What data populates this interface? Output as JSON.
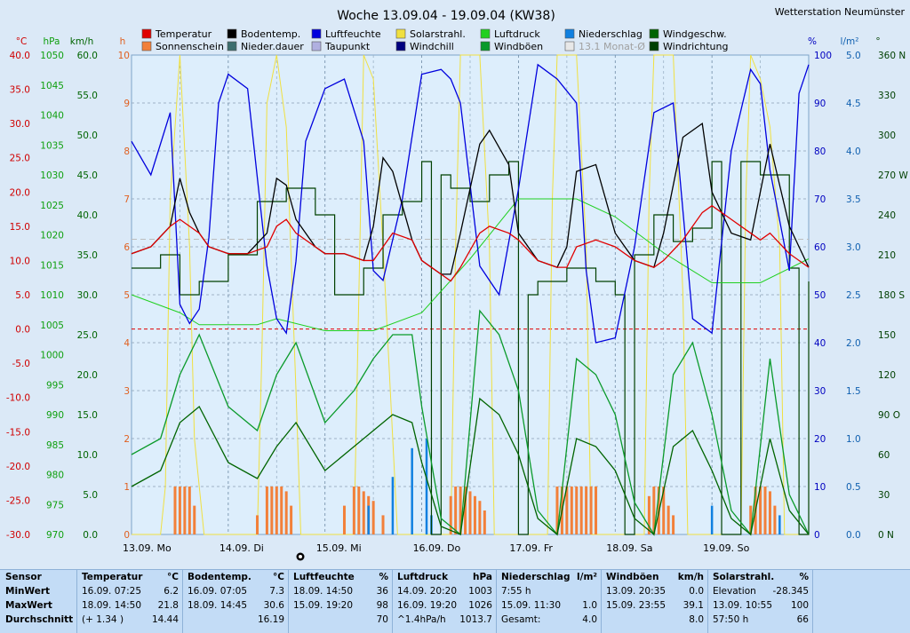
{
  "title": "Woche 13.09.04 - 19.09.04 (KW38)",
  "station": "Wetterstation Neumünster",
  "colors": {
    "background": "#dbe9f7",
    "temperature": "#e00000",
    "sunshine": "#f2803a",
    "soil_temp": "#000000",
    "precip_duration": "#3c6e6e",
    "humidity": "#0000dd",
    "dew_point": "#9090cc",
    "solar": "#f0e040",
    "windchill": "#000080",
    "pressure": "#20d020",
    "gusts": "#0a9a2a",
    "precipitation": "#1080e0",
    "month_avg": "#c8c8c8",
    "wind_speed": "#006400",
    "wind_dir": "#004000"
  },
  "axes": {
    "temp": {
      "unit": "°C",
      "ticks": [
        "40.0",
        "35.0",
        "30.0",
        "25.0",
        "20.0",
        "15.0",
        "10.0",
        "5.0",
        "0.0",
        "-5.0",
        "-10.0",
        "-15.0",
        "-20.0",
        "-25.0",
        "-30.0"
      ]
    },
    "pressure": {
      "unit": "hPa",
      "ticks": [
        "1050",
        "1045",
        "1040",
        "1035",
        "1030",
        "1025",
        "1020",
        "1015",
        "1010",
        "1005",
        "1000",
        "995",
        "990",
        "985",
        "980",
        "975",
        "970"
      ]
    },
    "wind": {
      "unit": "km/h",
      "ticks": [
        "60.0",
        "55.0",
        "50.0",
        "45.0",
        "40.0",
        "35.0",
        "30.0",
        "25.0",
        "20.0",
        "15.0",
        "10.0",
        "5.0",
        "0.0"
      ]
    },
    "hours": {
      "unit": "h",
      "ticks": [
        "10",
        "9",
        "8",
        "7",
        "6",
        "5",
        "4",
        "3",
        "2",
        "1",
        "0"
      ]
    },
    "percent": {
      "unit": "%",
      "ticks": [
        "100",
        "90",
        "80",
        "70",
        "60",
        "50",
        "40",
        "30",
        "20",
        "10",
        "0"
      ]
    },
    "precip": {
      "unit": "l/m²",
      "ticks": [
        "5.0",
        "4.5",
        "4.0",
        "3.5",
        "3.0",
        "2.5",
        "2.0",
        "1.5",
        "1.0",
        "0.5",
        "0.0"
      ]
    },
    "direction": {
      "unit": "°",
      "ticks": [
        "360 N",
        "330",
        "300",
        "270 W",
        "240",
        "210",
        "180 S",
        "150",
        "120",
        "90 O",
        "60",
        "30",
        "0 N"
      ]
    }
  },
  "day_labels": [
    "13.09.  Mo",
    "14.09.  Di",
    "15.09.  Mi",
    "16.09.  Do",
    "17.09.  Fr",
    "18.09.  Sa",
    "19.09.  So"
  ],
  "legend": [
    {
      "label": "Temperatur",
      "color": "#e00000"
    },
    {
      "label": "Sonnenschein",
      "color": "#f2803a"
    },
    {
      "label": "Bodentemp.",
      "color": "#000000"
    },
    {
      "label": "Nieder.dauer",
      "color": "#3c6e6e"
    },
    {
      "label": "Luftfeuchte",
      "color": "#0000dd"
    },
    {
      "label": "Taupunkt",
      "color": "#b0b0e0"
    },
    {
      "label": "Solarstrahl.",
      "color": "#f0e040"
    },
    {
      "label": "Windchill",
      "color": "#000080"
    },
    {
      "label": "Luftdruck",
      "color": "#20d020"
    },
    {
      "label": "Windböen",
      "color": "#0a9a2a"
    },
    {
      "label": "Niederschlag",
      "color": "#1080e0"
    },
    {
      "label": "13.1 Monat-Ø",
      "color": "#e8e8e8"
    },
    {
      "label": "Windgeschw.",
      "color": "#006400"
    },
    {
      "label": "Windrichtung",
      "color": "#004000"
    }
  ],
  "chart_data": {
    "type": "line",
    "title": "Woche 13.09.04 - 19.09.04 (KW38)",
    "x_unit": "days since 13.09.04 00:00",
    "xlim": [
      0,
      7
    ],
    "reference_line": {
      "name": "0 °C",
      "value": 0
    },
    "series": [
      {
        "name": "Temperatur",
        "unit": "°C",
        "x": [
          0,
          0.2,
          0.4,
          0.5,
          0.6,
          0.7,
          0.8,
          1.0,
          1.2,
          1.4,
          1.5,
          1.6,
          1.7,
          1.9,
          2.0,
          2.2,
          2.4,
          2.5,
          2.6,
          2.7,
          2.9,
          3.0,
          3.2,
          3.3,
          3.4,
          3.6,
          3.7,
          3.9,
          4.0,
          4.2,
          4.4,
          4.5,
          4.6,
          4.8,
          5.0,
          5.2,
          5.4,
          5.5,
          5.7,
          5.9,
          6.0,
          6.2,
          6.4,
          6.5,
          6.6,
          6.8,
          7.0
        ],
        "values": [
          11,
          12,
          15,
          16,
          15,
          14,
          12,
          11,
          11,
          12,
          15,
          16,
          14,
          12,
          11,
          11,
          10,
          10,
          12,
          14,
          13,
          10,
          8,
          7,
          9,
          14,
          15,
          14,
          13,
          10,
          9,
          9,
          12,
          13,
          12,
          10,
          9,
          10,
          13,
          17,
          18,
          16,
          14,
          13,
          14,
          11,
          9
        ]
      },
      {
        "name": "Bodentemp.",
        "unit": "°C",
        "x": [
          0,
          0.2,
          0.4,
          0.5,
          0.6,
          0.7,
          0.8,
          1.0,
          1.2,
          1.4,
          1.5,
          1.6,
          1.7,
          1.9,
          2.0,
          2.2,
          2.4,
          2.5,
          2.6,
          2.7,
          2.9,
          3.0,
          3.2,
          3.3,
          3.4,
          3.6,
          3.7,
          3.9,
          4.0,
          4.2,
          4.4,
          4.5,
          4.6,
          4.8,
          5.0,
          5.2,
          5.4,
          5.5,
          5.7,
          5.9,
          6.0,
          6.2,
          6.4,
          6.5,
          6.6,
          6.8,
          7.0
        ],
        "values": [
          11,
          12,
          15,
          22,
          17,
          14,
          12,
          11,
          11,
          14,
          22,
          21,
          16,
          12,
          11,
          11,
          10,
          15,
          25,
          23,
          13,
          10,
          8,
          8,
          14,
          27,
          29,
          24,
          14,
          10,
          9,
          12,
          23,
          24,
          14,
          10,
          9,
          14,
          28,
          30,
          20,
          14,
          13,
          20,
          27,
          15,
          9
        ]
      },
      {
        "name": "Luftfeuchte",
        "unit": "%",
        "x": [
          0,
          0.2,
          0.4,
          0.5,
          0.6,
          0.7,
          0.8,
          0.9,
          1.0,
          1.2,
          1.4,
          1.5,
          1.6,
          1.7,
          1.8,
          2.0,
          2.2,
          2.4,
          2.5,
          2.6,
          2.8,
          3.0,
          3.2,
          3.3,
          3.4,
          3.6,
          3.8,
          4.0,
          4.2,
          4.4,
          4.6,
          4.7,
          4.8,
          5.0,
          5.2,
          5.4,
          5.6,
          5.8,
          6.0,
          6.2,
          6.4,
          6.5,
          6.6,
          6.8,
          6.9,
          7.0
        ],
        "values": [
          82,
          75,
          88,
          48,
          44,
          47,
          62,
          90,
          96,
          93,
          56,
          45,
          42,
          57,
          82,
          93,
          95,
          82,
          55,
          53,
          70,
          96,
          97,
          95,
          90,
          56,
          50,
          72,
          98,
          95,
          90,
          55,
          40,
          41,
          60,
          88,
          90,
          45,
          42,
          80,
          97,
          94,
          76,
          55,
          92,
          98
        ]
      },
      {
        "name": "Solarstrahl.",
        "unit": "%",
        "x": [
          0,
          0.3,
          0.35,
          0.4,
          0.5,
          0.6,
          0.65,
          0.75,
          1.0,
          1.3,
          1.35,
          1.4,
          1.5,
          1.6,
          1.7,
          1.75,
          2.0,
          2.3,
          2.35,
          2.4,
          2.5,
          2.6,
          2.7,
          2.75,
          3.0,
          3.3,
          3.35,
          3.4,
          3.5,
          3.6,
          3.7,
          3.75,
          4.0,
          4.3,
          4.35,
          4.4,
          4.5,
          4.6,
          4.7,
          4.75,
          5.0,
          5.3,
          5.35,
          5.4,
          5.5,
          5.6,
          5.7,
          5.75,
          6.0,
          6.3,
          6.35,
          6.4,
          6.5,
          6.6,
          6.7,
          6.75,
          7.0
        ],
        "values": [
          0,
          0,
          10,
          70,
          100,
          60,
          20,
          0,
          0,
          0,
          40,
          90,
          100,
          85,
          30,
          0,
          0,
          0,
          50,
          100,
          95,
          60,
          20,
          0,
          0,
          0,
          60,
          100,
          100,
          100,
          60,
          0,
          0,
          0,
          70,
          100,
          100,
          100,
          60,
          0,
          0,
          0,
          70,
          100,
          100,
          100,
          50,
          0,
          0,
          0,
          70,
          100,
          95,
          85,
          60,
          0,
          0
        ]
      },
      {
        "name": "Luftdruck",
        "unit": "hPa",
        "x": [
          0,
          0.5,
          0.7,
          1.0,
          1.3,
          1.5,
          2.0,
          2.5,
          3.0,
          3.5,
          4.0,
          4.3,
          4.6,
          5.0,
          5.5,
          6.0,
          6.5,
          7.0
        ],
        "values": [
          1010,
          1007,
          1005,
          1005,
          1005,
          1006,
          1004,
          1004,
          1007,
          1016,
          1026,
          1026,
          1026,
          1023,
          1017,
          1012,
          1012,
          1016
        ]
      },
      {
        "name": "Windböen",
        "unit": "km/h",
        "x": [
          0,
          0.3,
          0.5,
          0.7,
          1.0,
          1.3,
          1.5,
          1.7,
          2.0,
          2.3,
          2.5,
          2.7,
          2.9,
          3.0,
          3.2,
          3.4,
          3.6,
          3.8,
          4.0,
          4.2,
          4.4,
          4.6,
          4.8,
          5.0,
          5.2,
          5.4,
          5.6,
          5.8,
          6.0,
          6.2,
          6.4,
          6.6,
          6.8,
          7.0
        ],
        "values": [
          10,
          12,
          20,
          25,
          16,
          13,
          20,
          24,
          14,
          18,
          22,
          25,
          25,
          16,
          2,
          0,
          28,
          25,
          18,
          3,
          0,
          22,
          20,
          15,
          4,
          0,
          20,
          24,
          15,
          3,
          0,
          22,
          5,
          0
        ]
      },
      {
        "name": "Windgeschw.",
        "unit": "km/h",
        "x": [
          0,
          0.3,
          0.5,
          0.7,
          1.0,
          1.3,
          1.5,
          1.7,
          2.0,
          2.3,
          2.5,
          2.7,
          2.9,
          3.0,
          3.2,
          3.4,
          3.6,
          3.8,
          4.0,
          4.2,
          4.4,
          4.6,
          4.8,
          5.0,
          5.2,
          5.4,
          5.6,
          5.8,
          6.0,
          6.2,
          6.4,
          6.6,
          6.8,
          7.0
        ],
        "values": [
          6,
          8,
          14,
          16,
          9,
          7,
          11,
          14,
          8,
          11,
          13,
          15,
          14,
          9,
          1,
          0,
          17,
          15,
          10,
          2,
          0,
          12,
          11,
          8,
          2,
          0,
          11,
          13,
          8,
          2,
          0,
          12,
          3,
          0
        ]
      },
      {
        "name": "Windrichtung",
        "unit": "°",
        "x": [
          0,
          0.3,
          0.5,
          0.7,
          1.0,
          1.3,
          1.6,
          1.9,
          2.1,
          2.4,
          2.6,
          2.8,
          3.0,
          3.1,
          3.2,
          3.3,
          3.5,
          3.7,
          3.9,
          4.0,
          4.1,
          4.2,
          4.5,
          4.8,
          5.0,
          5.1,
          5.2,
          5.4,
          5.6,
          5.8,
          6.0,
          6.1,
          6.3,
          6.5,
          6.6,
          6.8,
          6.9,
          7.0
        ],
        "values": [
          200,
          210,
          180,
          190,
          210,
          250,
          260,
          240,
          180,
          200,
          240,
          250,
          280,
          0,
          270,
          260,
          250,
          270,
          280,
          0,
          180,
          190,
          200,
          190,
          180,
          0,
          210,
          240,
          220,
          230,
          280,
          0,
          280,
          270,
          270,
          200,
          0,
          190
        ]
      },
      {
        "name": "Sonnenschein",
        "unit": "h",
        "x": [
          0.45,
          0.5,
          0.55,
          0.6,
          0.65,
          1.3,
          1.4,
          1.45,
          1.5,
          1.55,
          1.6,
          1.65,
          2.2,
          2.3,
          2.35,
          2.4,
          2.45,
          2.5,
          2.6,
          3.3,
          3.35,
          3.4,
          3.45,
          3.5,
          3.55,
          3.6,
          3.65,
          4.4,
          4.45,
          4.5,
          4.55,
          4.6,
          4.65,
          4.7,
          4.75,
          4.8,
          5.35,
          5.4,
          5.45,
          5.5,
          5.55,
          5.6,
          6.4,
          6.45,
          6.5,
          6.55,
          6.6,
          6.65
        ],
        "values": [
          1,
          1,
          1,
          1,
          0.6,
          0.4,
          1,
          1,
          1,
          1,
          0.9,
          0.6,
          0.6,
          1,
          1,
          0.9,
          0.8,
          0.7,
          0.4,
          0.8,
          1,
          1,
          1,
          0.9,
          0.8,
          0.7,
          0.5,
          1,
          1,
          1,
          1,
          1,
          1,
          1,
          1,
          1,
          0.8,
          1,
          1,
          1,
          0.6,
          0.4,
          0.6,
          1,
          1,
          1,
          0.9,
          0.6
        ]
      },
      {
        "name": "Niederschlag",
        "unit": "l/m²",
        "x": [
          2.45,
          2.7,
          2.9,
          3.05,
          3.1,
          6.0,
          6.7
        ],
        "values": [
          0.3,
          0.6,
          0.9,
          1.0,
          0.2,
          0.3,
          0.2
        ]
      }
    ]
  },
  "stats": {
    "rowlabels": [
      "Sensor",
      "MinWert",
      "MaxWert",
      "Durchschnitt"
    ],
    "columns": [
      {
        "name": "Temperatur",
        "unit": "°C",
        "rows": [
          [
            "16.09.  07:25",
            "6.2"
          ],
          [
            "18.09.  14:50",
            "21.8"
          ],
          [
            "(+ 1.34 )",
            "14.44"
          ]
        ]
      },
      {
        "name": "Bodentemp.",
        "unit": "°C",
        "rows": [
          [
            "16.09.  07:05",
            "7.3"
          ],
          [
            "18.09.  14:45",
            "30.6"
          ],
          [
            "",
            "16.19"
          ]
        ]
      },
      {
        "name": "Luftfeuchte",
        "unit": "%",
        "rows": [
          [
            "18.09.  14:50",
            "36"
          ],
          [
            "15.09.  19:20",
            "98"
          ],
          [
            "",
            "70"
          ]
        ]
      },
      {
        "name": "Luftdruck",
        "unit": "hPa",
        "rows": [
          [
            "14.09.  20:20",
            "1003"
          ],
          [
            "16.09.  19:20",
            "1026"
          ],
          [
            "^1.4hPa/h",
            "1013.7"
          ]
        ]
      },
      {
        "name": "Niederschlag",
        "unit": "l/m²",
        "rows": [
          [
            "7:55 h",
            ""
          ],
          [
            "15.09.  11:30",
            "1.0"
          ],
          [
            "Gesamt:",
            "4.0"
          ]
        ]
      },
      {
        "name": "Windböen",
        "unit": "km/h",
        "rows": [
          [
            "13.09.  20:35",
            "0.0"
          ],
          [
            "15.09.  23:55",
            "39.1"
          ],
          [
            "",
            "8.0"
          ]
        ]
      },
      {
        "name": "Solarstrahl.",
        "unit": "%",
        "rows": [
          [
            "Elevation",
            "-28.345"
          ],
          [
            "13.09.  10:55",
            "100"
          ],
          [
            "57:50 h",
            "66"
          ]
        ]
      }
    ]
  }
}
